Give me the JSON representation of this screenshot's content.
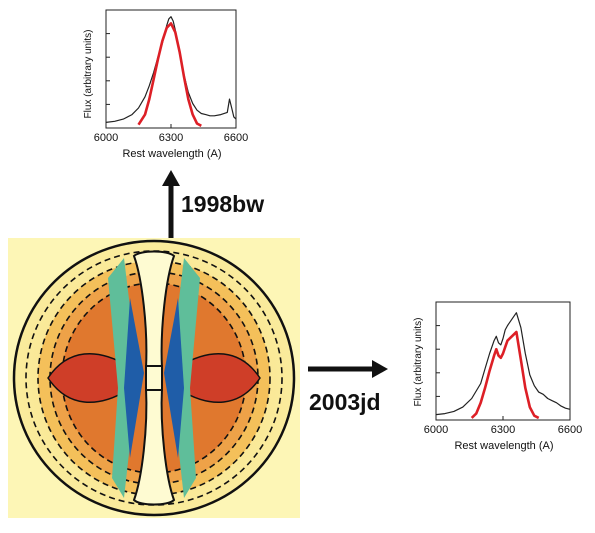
{
  "labels": {
    "top_arrow": "1998bw",
    "right_arrow": "2003jd"
  },
  "chart_data": [
    {
      "type": "line",
      "xlabel": "Rest wavelength (A)",
      "ylabel": "Flux (arbitrary units)",
      "xlim": [
        6000,
        6600
      ],
      "xticks": [
        6000,
        6300,
        6600
      ],
      "series": [
        {
          "color": "#222222",
          "x": [
            6000,
            6040,
            6080,
            6120,
            6150,
            6180,
            6200,
            6220,
            6240,
            6260,
            6270,
            6280,
            6290,
            6300,
            6310,
            6320,
            6330,
            6340,
            6360,
            6380,
            6400,
            6420,
            6440,
            6460,
            6480,
            6500,
            6530,
            6560,
            6570,
            6580,
            6590,
            6600
          ],
          "y": [
            0.05,
            0.06,
            0.08,
            0.12,
            0.18,
            0.28,
            0.38,
            0.5,
            0.64,
            0.76,
            0.84,
            0.92,
            0.98,
            1.0,
            0.96,
            0.88,
            0.78,
            0.66,
            0.48,
            0.32,
            0.22,
            0.16,
            0.13,
            0.12,
            0.11,
            0.11,
            0.12,
            0.14,
            0.26,
            0.18,
            0.1,
            0.08
          ]
        },
        {
          "color": "#dd1f26",
          "x": [
            6150,
            6180,
            6200,
            6220,
            6240,
            6260,
            6280,
            6300,
            6320,
            6340,
            6360,
            6380,
            6400,
            6420,
            6440
          ],
          "y": [
            0.03,
            0.12,
            0.26,
            0.44,
            0.62,
            0.78,
            0.9,
            0.94,
            0.86,
            0.68,
            0.46,
            0.26,
            0.12,
            0.04,
            0.02
          ]
        }
      ]
    },
    {
      "type": "line",
      "xlabel": "Rest wavelength (A)",
      "ylabel": "Flux (arbitrary units)",
      "xlim": [
        6000,
        6600
      ],
      "xticks": [
        6000,
        6300,
        6600
      ],
      "series": [
        {
          "color": "#222222",
          "x": [
            6000,
            6040,
            6080,
            6120,
            6160,
            6200,
            6220,
            6240,
            6260,
            6270,
            6280,
            6290,
            6300,
            6310,
            6320,
            6340,
            6360,
            6380,
            6400,
            6420,
            6440,
            6460,
            6480,
            6500,
            6520,
            6540,
            6560,
            6580,
            6600
          ],
          "y": [
            0.05,
            0.06,
            0.08,
            0.12,
            0.2,
            0.34,
            0.48,
            0.62,
            0.74,
            0.78,
            0.72,
            0.7,
            0.76,
            0.84,
            0.88,
            0.94,
            1.0,
            0.86,
            0.62,
            0.42,
            0.32,
            0.26,
            0.24,
            0.2,
            0.18,
            0.16,
            0.13,
            0.11,
            0.1
          ]
        },
        {
          "color": "#dd1f26",
          "x": [
            6160,
            6180,
            6200,
            6220,
            6240,
            6260,
            6270,
            6280,
            6290,
            6300,
            6310,
            6320,
            6340,
            6360,
            6380,
            6400,
            6420,
            6440,
            6460
          ],
          "y": [
            0.02,
            0.06,
            0.16,
            0.3,
            0.46,
            0.6,
            0.66,
            0.6,
            0.58,
            0.62,
            0.68,
            0.74,
            0.78,
            0.82,
            0.56,
            0.3,
            0.12,
            0.04,
            0.02
          ]
        }
      ]
    }
  ]
}
